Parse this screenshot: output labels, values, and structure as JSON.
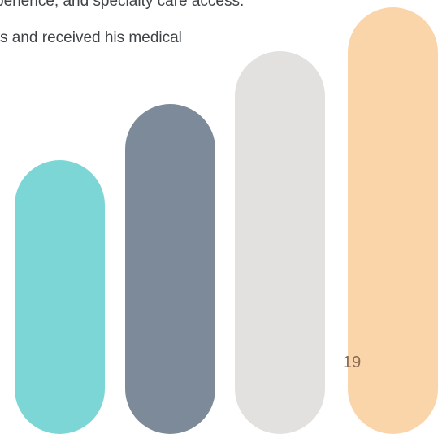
{
  "document": {
    "text_lines": [
      "perience, and specialty care access.",
      "s and received his medical"
    ],
    "page_number": "19"
  },
  "decoration": {
    "bars": [
      {
        "color": "#7dd6d6"
      },
      {
        "color": "#7d8a99"
      },
      {
        "color": "#e2e1df"
      },
      {
        "color": "#fbd5aa"
      }
    ]
  }
}
